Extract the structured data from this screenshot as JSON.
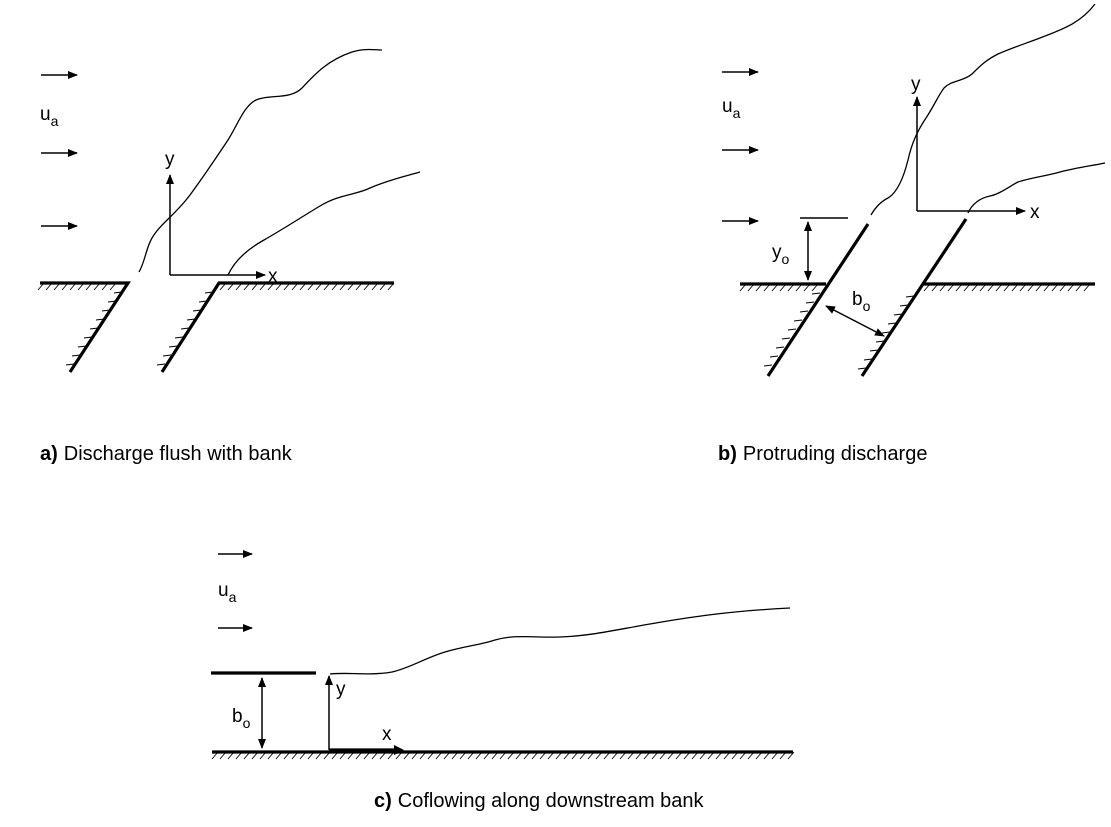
{
  "labels": {
    "ambient_velocity": "u",
    "ambient_velocity_sub": "a",
    "x_axis": "x",
    "y_axis": "y",
    "offset": "y",
    "offset_sub": "o",
    "width": "b",
    "width_sub": "o"
  },
  "captions": {
    "a_tag": "a)",
    "a_text": "Discharge flush with bank",
    "b_tag": "b)",
    "b_text": "Protruding discharge",
    "c_tag": "c)",
    "c_text": "Coflowing along downstream bank"
  }
}
